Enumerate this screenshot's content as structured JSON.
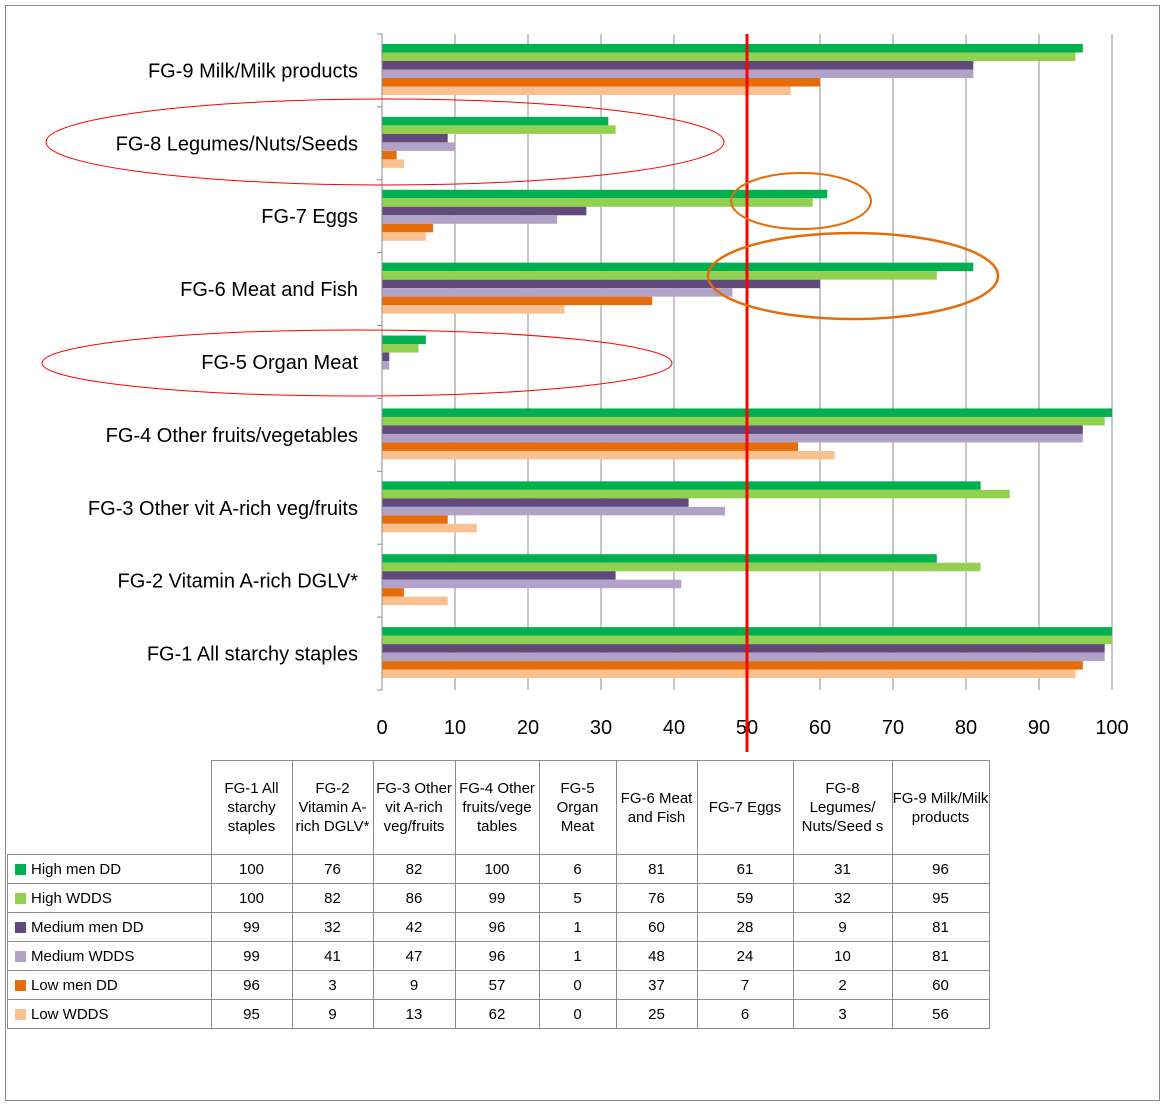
{
  "chart_data": {
    "type": "bar",
    "orientation": "horizontal",
    "categories": [
      "FG-1 All starchy staples",
      "FG-2 Vitamin A-rich DGLV*",
      "FG-3 Other vit A-rich veg/fruits",
      "FG-4 Other fruits/vegetables",
      "FG-5 Organ Meat",
      "FG-6 Meat and Fish",
      "FG-7 Eggs",
      "FG-8 Legumes/Nuts/Seeds",
      "FG-9 Milk/Milk products"
    ],
    "table_headers": [
      "FG-1 All starchy staples",
      "FG-2 Vitamin A-rich DGLV*",
      "FG-3 Other vit A-rich veg/fruits",
      "FG-4 Other fruits/vege tables",
      "FG-5 Organ Meat",
      "FG-6 Meat and Fish",
      "FG-7 Eggs",
      "FG-8 Legumes/ Nuts/Seed s",
      "FG-9 Milk/Milk products"
    ],
    "series": [
      {
        "name": "High men DD",
        "color": "#00b050",
        "values": [
          100,
          76,
          82,
          100,
          6,
          81,
          61,
          31,
          96
        ]
      },
      {
        "name": "High WDDS",
        "color": "#92d050",
        "values": [
          100,
          82,
          86,
          99,
          5,
          76,
          59,
          32,
          95
        ]
      },
      {
        "name": "Medium men DD",
        "color": "#604a7b",
        "values": [
          99,
          32,
          42,
          96,
          1,
          60,
          28,
          9,
          81
        ]
      },
      {
        "name": "Medium WDDS",
        "color": "#b3a2c7",
        "values": [
          99,
          41,
          47,
          96,
          1,
          48,
          24,
          10,
          81
        ]
      },
      {
        "name": "Low men DD",
        "color": "#e46c0a",
        "values": [
          96,
          3,
          9,
          57,
          0,
          37,
          7,
          2,
          60
        ]
      },
      {
        "name": "Low WDDS",
        "color": "#fac090",
        "values": [
          95,
          9,
          13,
          62,
          0,
          25,
          6,
          3,
          56
        ]
      }
    ],
    "xlim": [
      0,
      100
    ],
    "xticks": [
      0,
      10,
      20,
      30,
      40,
      50,
      60,
      70,
      80,
      90,
      100
    ],
    "grid": "vertical",
    "reference_line": {
      "value": 50,
      "color": "#ff0000"
    },
    "legend": "data-table-below",
    "annotations": [
      {
        "type": "ellipse",
        "color": "#ff0000",
        "category": "FG-8 Legumes/Nuts/Seeds"
      },
      {
        "type": "ellipse",
        "color": "#ff0000",
        "category": "FG-5 Organ Meat"
      },
      {
        "type": "ellipse",
        "color": "#e46c0a",
        "category": "FG-7 Eggs"
      },
      {
        "type": "ellipse",
        "color": "#e46c0a",
        "category": "FG-6 Meat and Fish"
      }
    ]
  }
}
